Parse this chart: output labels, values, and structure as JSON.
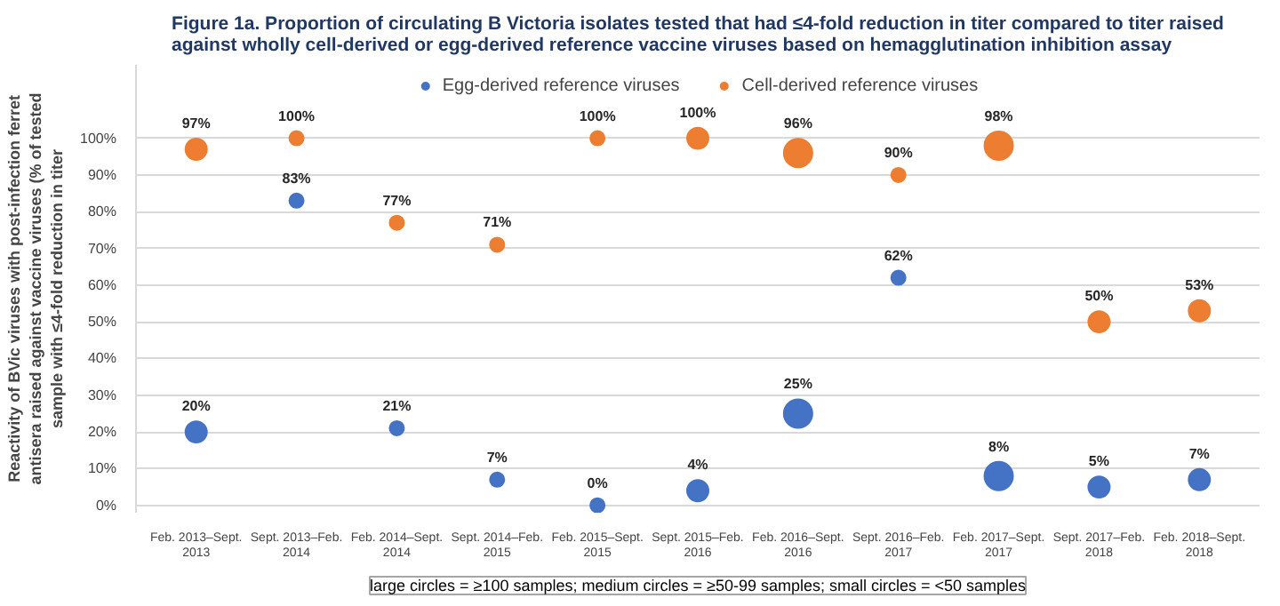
{
  "chart_data": {
    "type": "bubble",
    "title": "Figure 1a. Proportion of circulating B Victoria isolates tested that had ≤4-fold reduction in titer compared to titer raised\nagainst wholly cell-derived or egg-derived reference vaccine viruses based on hemagglutination inhibition assay",
    "ylabel": "Reactivity of BVic viruses with post-infection ferret\nantisera raised against vaccine viruses (% of tested\nsample with ≤4-fold reduction in titer",
    "categories": [
      "Feb. 2013–Sept.\n2013",
      "Sept. 2013–Feb.\n2014",
      "Feb. 2014–Sept.\n2014",
      "Sept. 2014–Feb.\n2015",
      "Feb. 2015–Sept.\n2015",
      "Sept. 2015–Feb.\n2016",
      "Feb. 2016–Sept.\n2016",
      "Sept. 2016–Feb.\n2017",
      "Feb. 2017–Sept.\n2017",
      "Sept. 2017–Feb.\n2018",
      "Feb. 2018–Sept.\n2018"
    ],
    "series": [
      {
        "name": "Egg-derived reference viruses",
        "color": "#4472c4",
        "values": [
          20,
          83,
          21,
          7,
          0,
          4,
          25,
          62,
          8,
          5,
          7
        ],
        "sizes": [
          0.56,
          0.25,
          0.25,
          0.25,
          0.25,
          0.56,
          1,
          0.25,
          1,
          0.56,
          0.56
        ],
        "value_labels": [
          "20%",
          "83%",
          "21%",
          "7%",
          "0%",
          "4%",
          "25%",
          "62%",
          "8%",
          "5%",
          "7%"
        ]
      },
      {
        "name": "Cell-derived reference viruses",
        "color": "#ed7d31",
        "values": [
          97,
          100,
          77,
          71,
          100,
          100,
          96,
          90,
          98,
          50,
          53
        ],
        "sizes": [
          0.56,
          0.25,
          0.25,
          0.25,
          0.25,
          0.56,
          1,
          0.25,
          1,
          0.56,
          0.56
        ],
        "value_labels": [
          "97%",
          "100%",
          "77%",
          "71%",
          "100%",
          "100%",
          "96%",
          "90%",
          "98%",
          "50%",
          "53%"
        ]
      }
    ],
    "ylim": [
      -2,
      120
    ],
    "yticks": [
      {
        "value": 0,
        "label": "0%"
      },
      {
        "value": 10,
        "label": "10%"
      },
      {
        "value": 20,
        "label": "20%"
      },
      {
        "value": 30,
        "label": "30%"
      },
      {
        "value": 40,
        "label": "40%"
      },
      {
        "value": 50,
        "label": "50%"
      },
      {
        "value": 60,
        "label": "60%"
      },
      {
        "value": 70,
        "label": "70%"
      },
      {
        "value": 80,
        "label": "80%"
      },
      {
        "value": 90,
        "label": "90%"
      },
      {
        "value": 100,
        "label": "100%"
      }
    ],
    "grid": "y",
    "legend": "top",
    "annotations": [
      "large circles = ≥100 samples; medium circles = ≥50-99 samples; small circles = <50 samples"
    ]
  }
}
